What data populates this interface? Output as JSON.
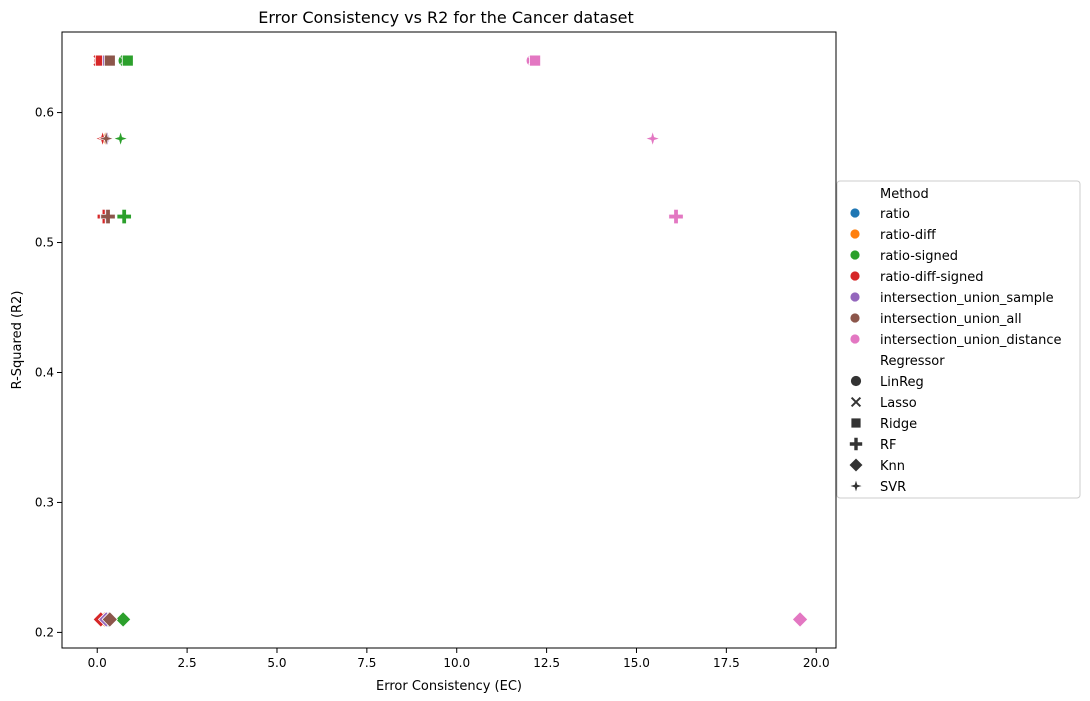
{
  "chart_data": {
    "type": "scatter",
    "title": "Error Consistency vs R2 for the Cancer dataset",
    "xlabel": "Error Consistency (EC)",
    "ylabel": "R-Squared (R2)",
    "xlim": [
      -0.98,
      20.55
    ],
    "ylim": [
      0.188,
      0.662
    ],
    "xticks": [
      "0.0",
      "2.5",
      "5.0",
      "7.5",
      "10.0",
      "12.5",
      "15.0",
      "17.5",
      "20.0"
    ],
    "yticks": [
      "0.2",
      "0.3",
      "0.4",
      "0.5",
      "0.6"
    ],
    "grid": false,
    "legend": {
      "placement": "center-right, outside plot",
      "method_title": "Method",
      "methods": [
        {
          "name": "ratio",
          "color": "#1f77b4"
        },
        {
          "name": "ratio-diff",
          "color": "#ff7f0e"
        },
        {
          "name": "ratio-signed",
          "color": "#2ca02c"
        },
        {
          "name": "ratio-diff-signed",
          "color": "#d62728"
        },
        {
          "name": "intersection_union_sample",
          "color": "#9467bd"
        },
        {
          "name": "intersection_union_all",
          "color": "#8c564b"
        },
        {
          "name": "intersection_union_distance",
          "color": "#e377c2"
        }
      ],
      "regressor_title": "Regressor",
      "regressors": [
        {
          "name": "LinReg",
          "marker": "circle"
        },
        {
          "name": "Lasso",
          "marker": "x"
        },
        {
          "name": "Ridge",
          "marker": "square"
        },
        {
          "name": "RF",
          "marker": "plus"
        },
        {
          "name": "Knn",
          "marker": "diamond"
        },
        {
          "name": "SVR",
          "marker": "star"
        }
      ]
    },
    "points": [
      {
        "method": "ratio",
        "regressor": "LinReg",
        "x": 0.12,
        "y": 0.64
      },
      {
        "method": "ratio-diff",
        "regressor": "LinReg",
        "x": 0.18,
        "y": 0.64
      },
      {
        "method": "ratio-signed",
        "regressor": "LinReg",
        "x": 0.75,
        "y": 0.64
      },
      {
        "method": "ratio-diff-signed",
        "regressor": "LinReg",
        "x": 0.08,
        "y": 0.64
      },
      {
        "method": "intersection_union_sample",
        "regressor": "LinReg",
        "x": 0.3,
        "y": 0.64
      },
      {
        "method": "intersection_union_all",
        "regressor": "LinReg",
        "x": 0.35,
        "y": 0.64
      },
      {
        "method": "intersection_union_distance",
        "regressor": "LinReg",
        "x": 12.1,
        "y": 0.64
      },
      {
        "method": "ratio",
        "regressor": "Lasso",
        "x": 0.15,
        "y": 0.64
      },
      {
        "method": "ratio-diff",
        "regressor": "Lasso",
        "x": 0.2,
        "y": 0.64
      },
      {
        "method": "ratio-signed",
        "regressor": "Lasso",
        "x": 0.8,
        "y": 0.64
      },
      {
        "method": "ratio-diff-signed",
        "regressor": "Lasso",
        "x": 0.05,
        "y": 0.64
      },
      {
        "method": "intersection_union_sample",
        "regressor": "Lasso",
        "x": 0.28,
        "y": 0.64
      },
      {
        "method": "intersection_union_all",
        "regressor": "Lasso",
        "x": 0.32,
        "y": 0.64
      },
      {
        "method": "intersection_union_distance",
        "regressor": "Lasso",
        "x": 12.15,
        "y": 0.64
      },
      {
        "method": "ratio",
        "regressor": "Ridge",
        "x": 0.12,
        "y": 0.64
      },
      {
        "method": "ratio-diff",
        "regressor": "Ridge",
        "x": 0.18,
        "y": 0.64
      },
      {
        "method": "ratio-signed",
        "regressor": "Ridge",
        "x": 0.85,
        "y": 0.64
      },
      {
        "method": "ratio-diff-signed",
        "regressor": "Ridge",
        "x": 0.1,
        "y": 0.64
      },
      {
        "method": "intersection_union_sample",
        "regressor": "Ridge",
        "x": 0.3,
        "y": 0.64
      },
      {
        "method": "intersection_union_all",
        "regressor": "Ridge",
        "x": 0.35,
        "y": 0.64
      },
      {
        "method": "intersection_union_distance",
        "regressor": "Ridge",
        "x": 12.18,
        "y": 0.64
      },
      {
        "method": "ratio",
        "regressor": "RF",
        "x": 0.2,
        "y": 0.52
      },
      {
        "method": "ratio-diff",
        "regressor": "RF",
        "x": 0.25,
        "y": 0.52
      },
      {
        "method": "ratio-signed",
        "regressor": "RF",
        "x": 0.75,
        "y": 0.52
      },
      {
        "method": "ratio-diff-signed",
        "regressor": "RF",
        "x": 0.2,
        "y": 0.52
      },
      {
        "method": "intersection_union_sample",
        "regressor": "RF",
        "x": 0.28,
        "y": 0.52
      },
      {
        "method": "intersection_union_all",
        "regressor": "RF",
        "x": 0.3,
        "y": 0.52
      },
      {
        "method": "intersection_union_distance",
        "regressor": "RF",
        "x": 16.1,
        "y": 0.52
      },
      {
        "method": "ratio",
        "regressor": "Knn",
        "x": 0.3,
        "y": 0.21
      },
      {
        "method": "ratio-diff",
        "regressor": "Knn",
        "x": 0.2,
        "y": 0.21
      },
      {
        "method": "ratio-signed",
        "regressor": "Knn",
        "x": 0.72,
        "y": 0.21
      },
      {
        "method": "ratio-diff-signed",
        "regressor": "Knn",
        "x": 0.1,
        "y": 0.21
      },
      {
        "method": "intersection_union_sample",
        "regressor": "Knn",
        "x": 0.25,
        "y": 0.21
      },
      {
        "method": "intersection_union_all",
        "regressor": "Knn",
        "x": 0.35,
        "y": 0.21
      },
      {
        "method": "intersection_union_distance",
        "regressor": "Knn",
        "x": 19.55,
        "y": 0.21
      },
      {
        "method": "ratio",
        "regressor": "SVR",
        "x": 0.25,
        "y": 0.58
      },
      {
        "method": "ratio-diff",
        "regressor": "SVR",
        "x": 0.22,
        "y": 0.58
      },
      {
        "method": "ratio-signed",
        "regressor": "SVR",
        "x": 0.65,
        "y": 0.58
      },
      {
        "method": "ratio-diff-signed",
        "regressor": "SVR",
        "x": 0.15,
        "y": 0.58
      },
      {
        "method": "intersection_union_sample",
        "regressor": "SVR",
        "x": 0.28,
        "y": 0.58
      },
      {
        "method": "intersection_union_all",
        "regressor": "SVR",
        "x": 0.25,
        "y": 0.58
      },
      {
        "method": "intersection_union_distance",
        "regressor": "SVR",
        "x": 15.45,
        "y": 0.58
      }
    ]
  }
}
